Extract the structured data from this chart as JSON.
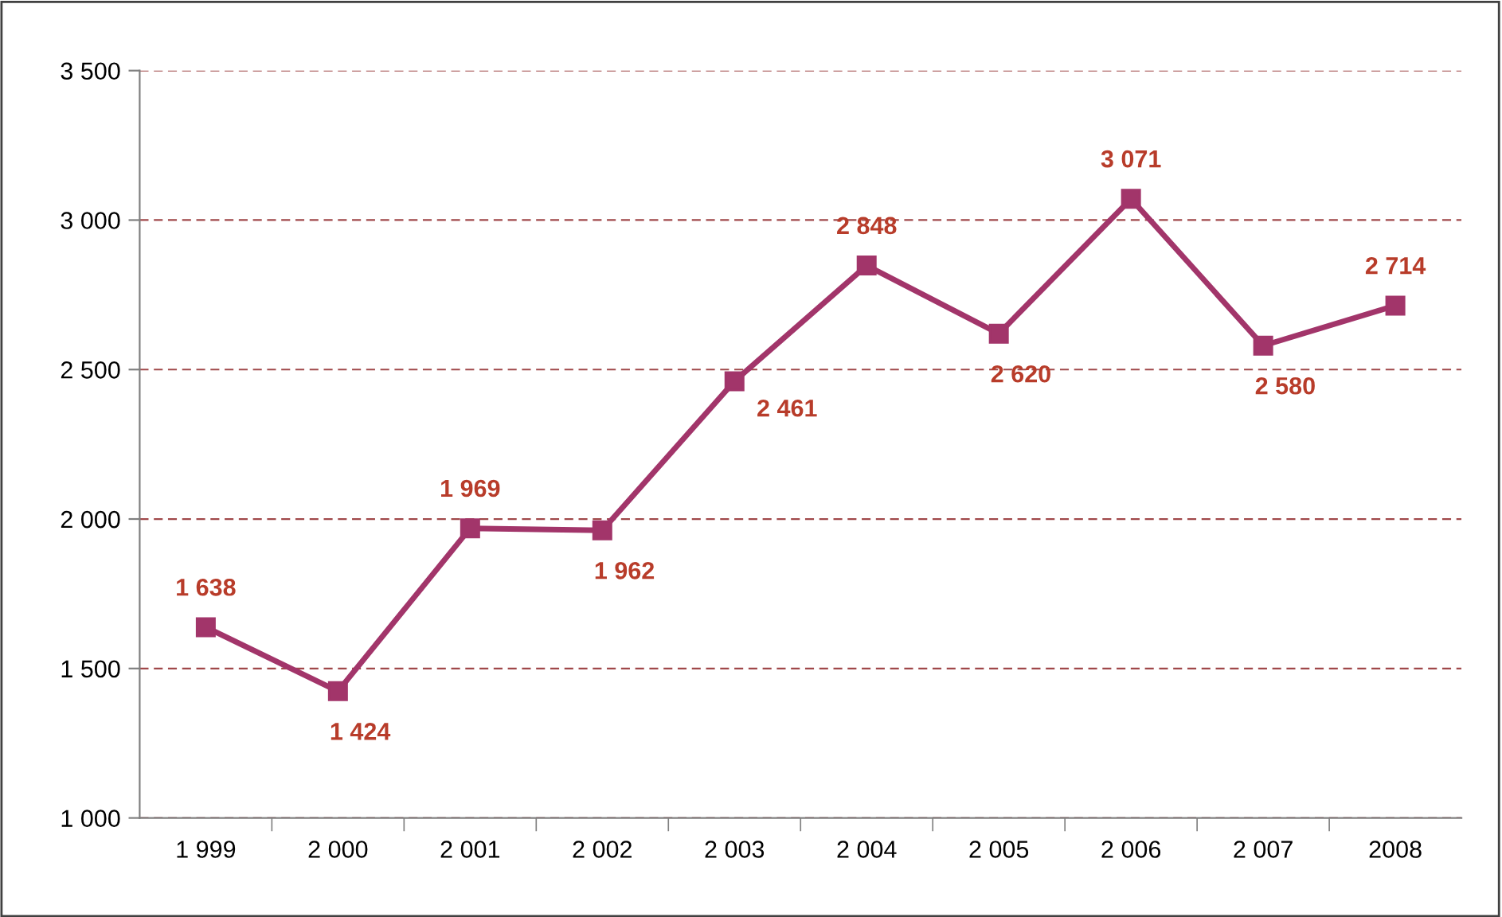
{
  "chart_data": {
    "type": "line",
    "categories": [
      "1 999",
      "2 000",
      "2 001",
      "2 002",
      "2 003",
      "2 004",
      "2 005",
      "2 006",
      "2 007",
      "2008"
    ],
    "series": [
      {
        "color": "#a2356a",
        "values": [
          1638,
          1424,
          1969,
          1962,
          2461,
          2848,
          2620,
          3071,
          2580,
          2714
        ],
        "value_labels": [
          "1 638",
          "1 424",
          "1 969",
          "1 962",
          "2 461",
          "2 848",
          "2 620",
          "3 071",
          "2 580",
          "2 714"
        ]
      }
    ],
    "ylim": [
      1000,
      3500
    ],
    "yticks": [
      {
        "value": 1000,
        "label": "1 000"
      },
      {
        "value": 1500,
        "label": "1 500"
      },
      {
        "value": 2000,
        "label": "2 000"
      },
      {
        "value": 2500,
        "label": "2 500"
      },
      {
        "value": 3000,
        "label": "3 000"
      },
      {
        "value": 3500,
        "label": "3 500"
      }
    ],
    "grid": "y",
    "marker": "square",
    "line_style": "solid",
    "legend": false
  }
}
